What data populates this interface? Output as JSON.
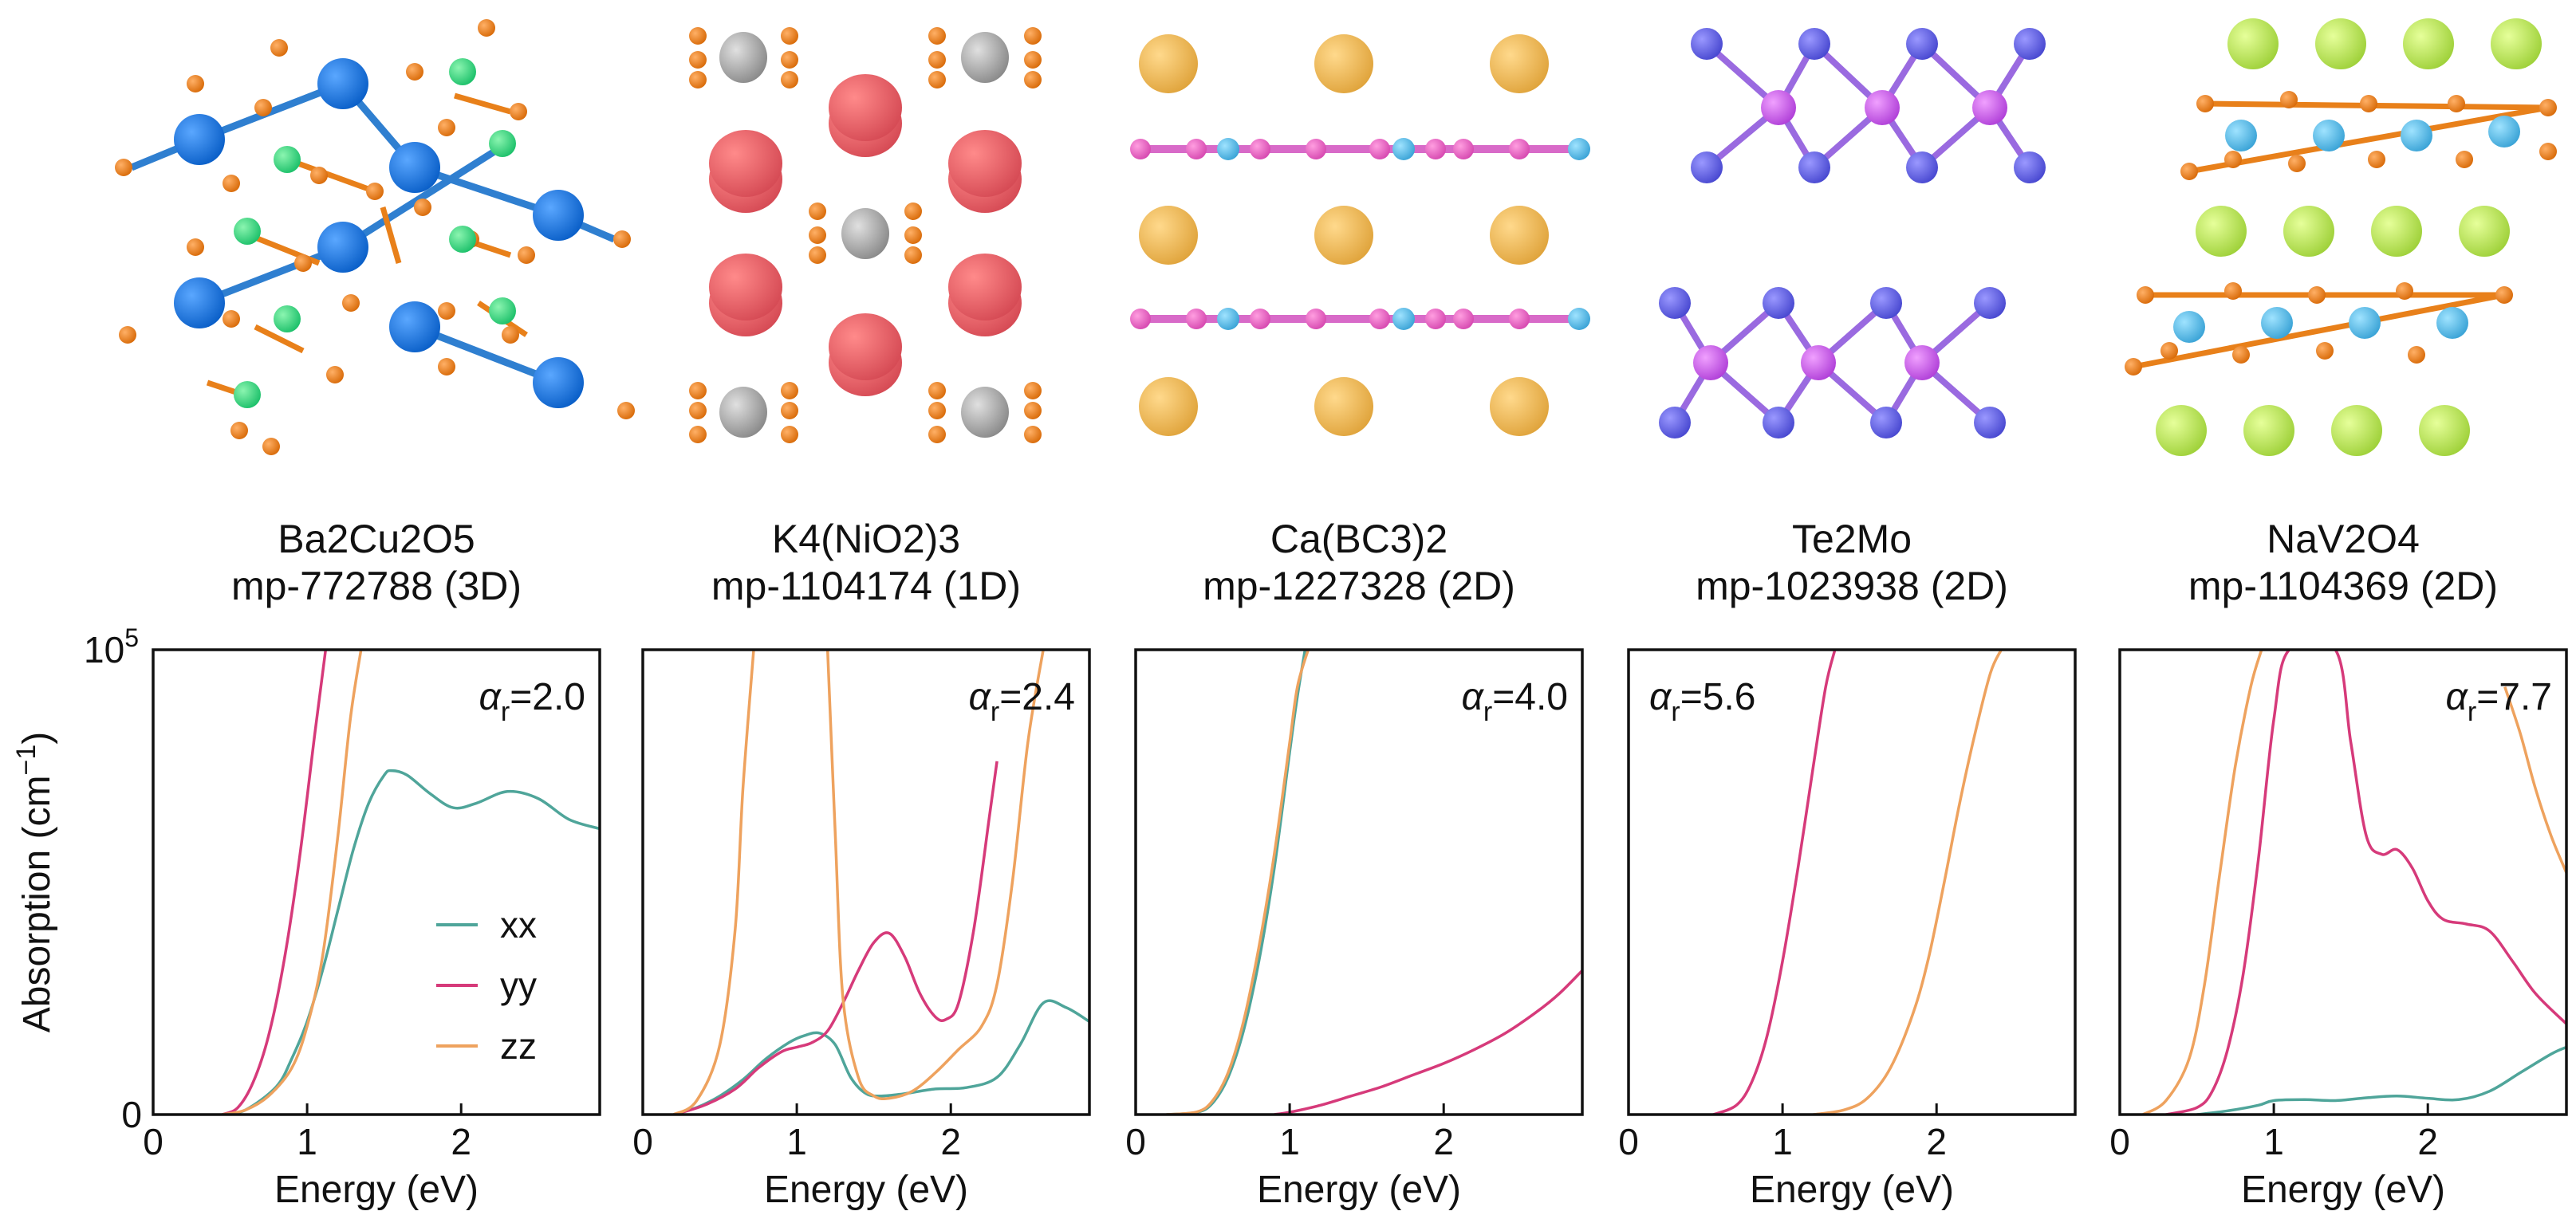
{
  "chart_data": {
    "type": "line",
    "ylabel": "Absorption (cm",
    "ylabel_sup": "−1",
    "ylabel_close": ")",
    "xlabel": "Energy (eV)",
    "ylim": [
      0,
      100000
    ],
    "xlim": [
      0,
      2.9
    ],
    "xticks": [
      0,
      1,
      2
    ],
    "ytick_bottom": "0",
    "ytick_top_base": "10",
    "ytick_top_exp": "5",
    "legend": {
      "location": "lower-right of first panel",
      "entries": [
        "xx",
        "yy",
        "zz"
      ]
    },
    "series_colors": {
      "xx": "#4fa59a",
      "yy": "#d63a7a",
      "zz": "#eea25e"
    },
    "panels": [
      {
        "formula": "Ba2Cu2O5",
        "id": "mp-772788 (3D)",
        "alpha_base": "α",
        "alpha_sub": "r",
        "alpha_value": "=2.0",
        "alpha_pos": "right",
        "series": [
          {
            "name": "xx",
            "x": [
              0.45,
              0.6,
              0.8,
              0.9,
              1.0,
              1.1,
              1.2,
              1.3,
              1.4,
              1.5,
              1.55,
              1.65,
              1.8,
              1.95,
              2.1,
              2.3,
              2.5,
              2.7,
              2.9
            ],
            "y": [
              0,
              1000,
              6000,
              12000,
              20000,
              31000,
              44000,
              57000,
              67000,
              73000,
              74000,
              73000,
              69000,
              66000,
              67000,
              69500,
              68000,
              63500,
              61500
            ]
          },
          {
            "name": "yy",
            "x": [
              0.45,
              0.55,
              0.65,
              0.75,
              0.85,
              0.95,
              1.05,
              1.12
            ],
            "y": [
              0,
              1500,
              7000,
              17000,
              33000,
              55000,
              82000,
              100000
            ]
          },
          {
            "name": "zz",
            "x": [
              0.45,
              0.6,
              0.75,
              0.9,
              1.0,
              1.1,
              1.2,
              1.28,
              1.35
            ],
            "y": [
              0,
              1000,
              4000,
              10000,
              19000,
              34000,
              60000,
              85000,
              100000
            ]
          }
        ]
      },
      {
        "formula": "K4(NiO2)3",
        "id": "mp-1104174 (1D)",
        "alpha_base": "α",
        "alpha_sub": "r",
        "alpha_value": "=2.4",
        "alpha_pos": "right",
        "series": [
          {
            "name": "xx",
            "x": [
              0.2,
              0.35,
              0.5,
              0.65,
              0.8,
              0.95,
              1.05,
              1.15,
              1.25,
              1.35,
              1.45,
              1.55,
              1.7,
              1.9,
              2.1,
              2.3,
              2.45,
              2.6,
              2.75,
              2.9
            ],
            "y": [
              0,
              1500,
              4000,
              7500,
              12000,
              15500,
              17000,
              17500,
              15000,
              8000,
              4500,
              4000,
              4500,
              5500,
              5800,
              8000,
              15000,
              24000,
              23000,
              20000
            ]
          },
          {
            "name": "yy",
            "x": [
              0.2,
              0.4,
              0.6,
              0.75,
              0.9,
              1.0,
              1.1,
              1.2,
              1.3,
              1.4,
              1.5,
              1.6,
              1.7,
              1.8,
              1.9,
              1.97,
              2.05,
              2.15,
              2.25,
              2.3
            ],
            "y": [
              0,
              2000,
              5500,
              10000,
              13500,
              14500,
              15500,
              18000,
              24000,
              31000,
              37000,
              39000,
              34000,
              26000,
              21000,
              20500,
              24000,
              40000,
              64000,
              76000
            ]
          },
          {
            "name": "zz",
            "x": [
              0.2,
              0.35,
              0.5,
              0.6,
              0.65,
              0.72
            ],
            "y": [
              0,
              3000,
              15000,
              40000,
              70000,
              100000
            ]
          },
          {
            "name": "zz_b",
            "x": [
              1.2,
              1.25,
              1.3,
              1.4,
              1.5,
              1.6,
              1.75,
              1.9,
              2.05,
              2.2,
              2.3,
              2.4,
              2.5,
              2.6
            ],
            "y": [
              100000,
              60000,
              25000,
              8000,
              4000,
              3500,
              5000,
              9000,
              14000,
              19000,
              28000,
              50000,
              80000,
              100000
            ]
          }
        ]
      },
      {
        "formula": "Ca(BC3)2",
        "id": "mp-1227328 (2D)",
        "alpha_base": "α",
        "alpha_sub": "r",
        "alpha_value": "=4.0",
        "alpha_pos": "right",
        "series": [
          {
            "name": "xx",
            "x": [
              0.2,
              0.4,
              0.5,
              0.6,
              0.7,
              0.8,
              0.9,
              1.0,
              1.05,
              1.1
            ],
            "y": [
              0,
              500,
              2500,
              8000,
              18000,
              33000,
              53000,
              78000,
              90000,
              100000
            ]
          },
          {
            "name": "yy",
            "x": [
              0.9,
              1.0,
              1.2,
              1.4,
              1.6,
              1.8,
              2.0,
              2.2,
              2.4,
              2.6,
              2.75,
              2.9
            ],
            "y": [
              0,
              500,
              2000,
              4000,
              6000,
              8500,
              11000,
              14000,
              17500,
              22000,
              26000,
              31000
            ]
          },
          {
            "name": "zz",
            "x": [
              0.2,
              0.4,
              0.5,
              0.6,
              0.7,
              0.8,
              0.9,
              1.0,
              1.05,
              1.12
            ],
            "y": [
              0,
              600,
              3000,
              9000,
              20000,
              36000,
              56000,
              80000,
              92000,
              100000
            ]
          }
        ]
      },
      {
        "formula": "Te2Mo",
        "id": "mp-1023938 (2D)",
        "alpha_base": "α",
        "alpha_sub": "r",
        "alpha_value": "=5.6",
        "alpha_pos": "left",
        "series": [
          {
            "name": "yy",
            "x": [
              0.55,
              0.7,
              0.8,
              0.9,
              1.0,
              1.1,
              1.2,
              1.28,
              1.34
            ],
            "y": [
              0,
              2000,
              7000,
              17000,
              33000,
              53000,
              75000,
              92000,
              100000
            ]
          },
          {
            "name": "zz",
            "x": [
              1.2,
              1.4,
              1.55,
              1.7,
              1.85,
              1.95,
              2.05,
              2.15,
              2.25,
              2.35,
              2.42
            ],
            "y": [
              0,
              1000,
              3500,
              10000,
              22000,
              34000,
              50000,
              67000,
              82000,
              95000,
              100000
            ]
          }
        ]
      },
      {
        "formula": "NaV2O4",
        "id": "mp-1104369 (2D)",
        "alpha_base": "α",
        "alpha_sub": "r",
        "alpha_value": "=7.7",
        "alpha_pos": "right",
        "series": [
          {
            "name": "xx",
            "x": [
              0.5,
              0.7,
              0.9,
              1.0,
              1.2,
              1.4,
              1.6,
              1.8,
              2.0,
              2.2,
              2.4,
              2.6,
              2.8,
              2.9
            ],
            "y": [
              0,
              800,
              2000,
              3000,
              3200,
              3000,
              3600,
              4000,
              3500,
              3200,
              5000,
              9000,
              13000,
              14500
            ]
          },
          {
            "name": "yy",
            "x": [
              0.3,
              0.5,
              0.6,
              0.7,
              0.8,
              0.9,
              1.0,
              1.1,
              1.4,
              1.5,
              1.6,
              1.7,
              1.8,
              1.9,
              2.0,
              2.1,
              2.25,
              2.4,
              2.55,
              2.7,
              2.9
            ],
            "y": [
              0,
              1500,
              5000,
              14000,
              30000,
              55000,
              85000,
              100000,
              100000,
              80000,
              60000,
              56000,
              57000,
              53000,
              46000,
              42000,
              41000,
              39500,
              33000,
              26000,
              19500
            ]
          },
          {
            "name": "zz",
            "x": [
              0.15,
              0.3,
              0.45,
              0.55,
              0.65,
              0.75,
              0.85,
              0.92
            ],
            "y": [
              0,
              3000,
              12000,
              28000,
              52000,
              75000,
              92000,
              100000
            ]
          },
          {
            "name": "zz_b",
            "x": [
              2.5,
              2.6,
              2.7,
              2.8,
              2.9
            ],
            "y": [
              92000,
              82000,
              70000,
              60000,
              52000
            ]
          }
        ]
      }
    ]
  }
}
